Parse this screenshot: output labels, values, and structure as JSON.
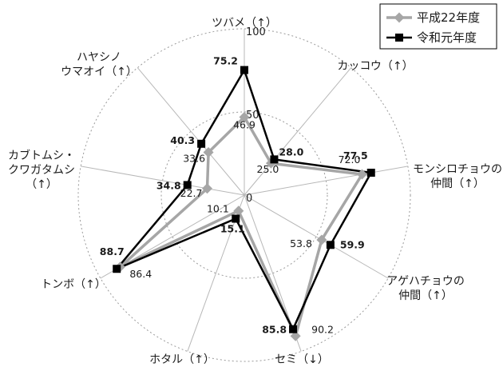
{
  "chart_data": {
    "type": "radar",
    "max": 100,
    "ticks": [
      {
        "value": 0,
        "label": "0"
      },
      {
        "value": 50,
        "label": "50"
      },
      {
        "value": 100,
        "label": "100"
      }
    ],
    "categories": [
      [
        "ツバメ（↑）"
      ],
      [
        "カッコウ（↑）"
      ],
      [
        "モンシロチョウの",
        "仲間（↑）"
      ],
      [
        "アゲハチョウの",
        "仲間（↑）"
      ],
      [
        "セミ（↓）"
      ],
      [
        "ホタル（↑）"
      ],
      [
        "トンボ（↑）"
      ],
      [
        "カブトムシ・",
        "クワガタムシ",
        "（↑）"
      ],
      [
        "ハヤシノ",
        "ウマオイ（↑）"
      ]
    ],
    "series": [
      {
        "name": "平成22年度",
        "color": "#a6a6a6",
        "marker": "diamond",
        "values": [
          46.9,
          25.0,
          72.0,
          53.8,
          90.2,
          10.1,
          86.4,
          22.7,
          33.6
        ],
        "labels": [
          "46.9",
          "25.0",
          "72.0",
          "53.8",
          "90.2",
          "10.1",
          "86.4",
          "22.7",
          "33.6"
        ]
      },
      {
        "name": "令和元年度",
        "color": "#000000",
        "marker": "square",
        "values": [
          75.2,
          28.0,
          77.5,
          59.9,
          85.8,
          15.1,
          88.7,
          34.8,
          40.3
        ],
        "labels": [
          "75.2",
          "28.0",
          "77.5",
          "59.9",
          "85.8",
          "15.1",
          "88.7",
          "34.8",
          "40.3"
        ]
      }
    ],
    "legend_position": "top-right",
    "grid": true
  }
}
